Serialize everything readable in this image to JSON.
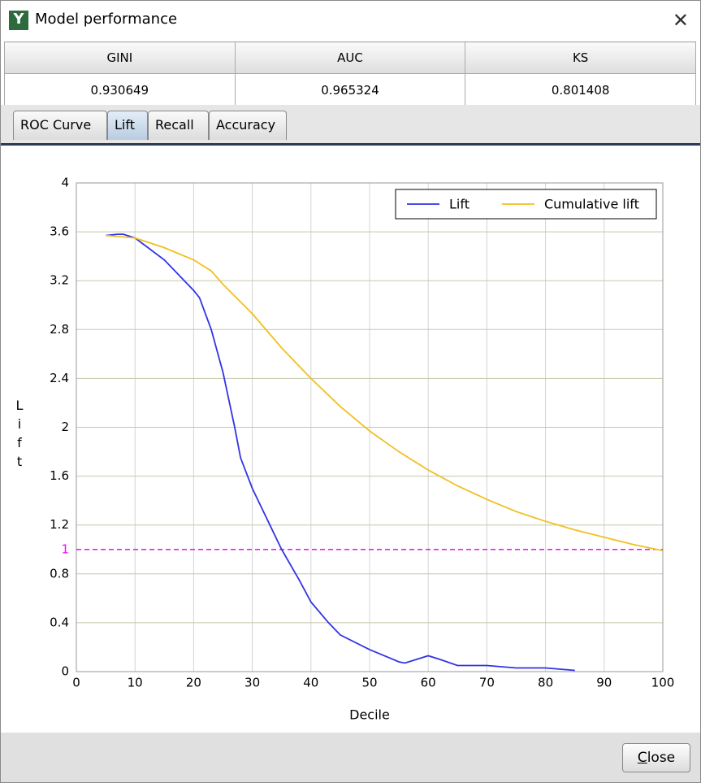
{
  "window": {
    "title": "Model performance",
    "close_button": "Close"
  },
  "metrics": {
    "headers": [
      "GINI",
      "AUC",
      "KS"
    ],
    "values": [
      "0.930649",
      "0.965324",
      "0.801408"
    ]
  },
  "tabs": {
    "items": [
      "ROC Curve",
      "Lift",
      "Recall",
      "Accuracy"
    ],
    "active": 1
  },
  "chart_data": {
    "type": "line",
    "x_label": "Decile",
    "y_label": "Lift",
    "xlim": [
      0,
      100
    ],
    "xticks": [
      0,
      10,
      20,
      30,
      40,
      50,
      60,
      70,
      80,
      90,
      100
    ],
    "ylim": [
      0,
      4
    ],
    "yticks": [
      0,
      0.4,
      0.8,
      1.2,
      1.6,
      2,
      2.4,
      2.8,
      3.2,
      3.6,
      4
    ],
    "grid": true,
    "legend": "top-right",
    "reference_line": {
      "value": 1,
      "color": "#ff00ff"
    },
    "series": [
      {
        "name": "Lift",
        "color": "#3333e6",
        "x": [
          5,
          7,
          8,
          10,
          15,
          20,
          21,
          23,
          25,
          27,
          28,
          30,
          33,
          35,
          38,
          40,
          43,
          45,
          50,
          53,
          55,
          56,
          58,
          60,
          62,
          65,
          70,
          75,
          80,
          85
        ],
        "values": [
          3.57,
          3.58,
          3.58,
          3.55,
          3.37,
          3.12,
          3.06,
          2.8,
          2.45,
          2.0,
          1.75,
          1.5,
          1.2,
          1.0,
          0.75,
          0.57,
          0.4,
          0.3,
          0.18,
          0.12,
          0.08,
          0.07,
          0.1,
          0.13,
          0.1,
          0.05,
          0.05,
          0.03,
          0.03,
          0.01
        ]
      },
      {
        "name": "Cumulative lift",
        "color": "#f0c020",
        "x": [
          5,
          10,
          15,
          20,
          23,
          25,
          30,
          35,
          40,
          45,
          50,
          55,
          60,
          65,
          70,
          75,
          80,
          85,
          90,
          95,
          100
        ],
        "values": [
          3.57,
          3.55,
          3.47,
          3.37,
          3.28,
          3.17,
          2.93,
          2.65,
          2.4,
          2.17,
          1.97,
          1.8,
          1.65,
          1.52,
          1.41,
          1.31,
          1.23,
          1.16,
          1.1,
          1.04,
          0.99
        ]
      }
    ]
  }
}
